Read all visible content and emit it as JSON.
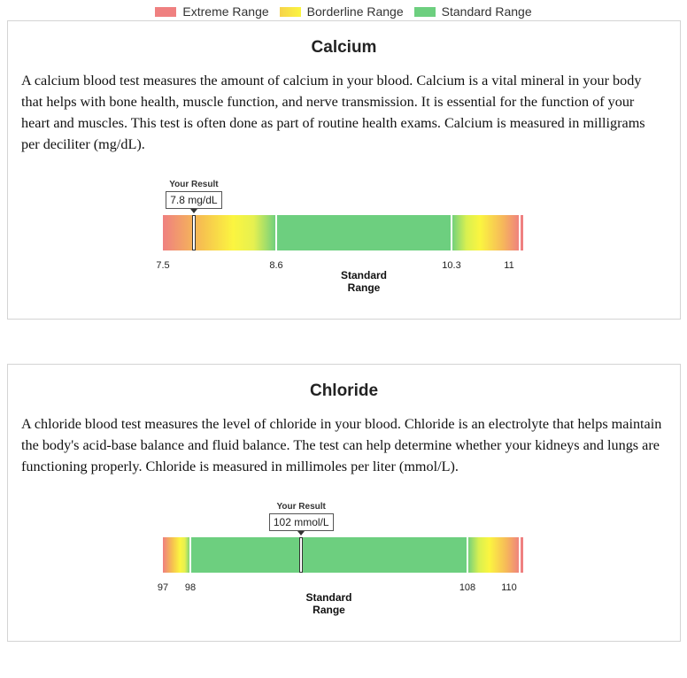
{
  "legend": {
    "items": [
      {
        "label": "Extreme Range",
        "color": "#ef8080"
      },
      {
        "label": "Borderline Range",
        "color": "#f9e84a"
      },
      {
        "label": "Standard Range",
        "color": "#6dcf7f"
      }
    ]
  },
  "colors": {
    "extreme": "#ef8080",
    "borderline": "#fbf540",
    "standard": "#6dcf7f"
  },
  "tests": [
    {
      "title": "Calcium",
      "description": "A calcium blood test measures the amount of calcium in your blood. Calcium is a vital mineral in your body that helps with bone health, muscle function, and nerve transmission. It is essential for the function of your heart and muscles. This test is often done as part of routine health exams. Calcium is measured in milligrams per deciliter (mg/dL).",
      "result_heading": "Your Result",
      "result_value": 7.8,
      "result_text": "7.8  mg/dL",
      "ticks": [
        {
          "value": 7.5,
          "label": "7.5"
        },
        {
          "value": 8.6,
          "label": "8.6"
        },
        {
          "value": 10.3,
          "label": "10.3"
        },
        {
          "value": 11,
          "label": "11"
        }
      ],
      "standard_range": [
        8.6,
        10.3
      ],
      "standard_label_line1": "Standard",
      "standard_label_line2": "Range"
    },
    {
      "title": "Chloride",
      "description": "A chloride blood test measures the level of chloride in your blood. Chloride is an electrolyte that helps maintain the body's acid-base balance and fluid balance. The test can help determine whether your kidneys and lungs are functioning properly. Chloride is measured in millimoles per liter (mmol/L).",
      "result_heading": "Your Result",
      "result_value": 102,
      "result_text": "102  mmol/L",
      "ticks": [
        {
          "value": 97,
          "label": "97"
        },
        {
          "value": 98,
          "label": "98"
        },
        {
          "value": 108,
          "label": "108"
        },
        {
          "value": 110,
          "label": "110"
        }
      ],
      "standard_range": [
        98,
        108
      ],
      "standard_label_line1": "Standard",
      "standard_label_line2": "Range"
    }
  ]
}
